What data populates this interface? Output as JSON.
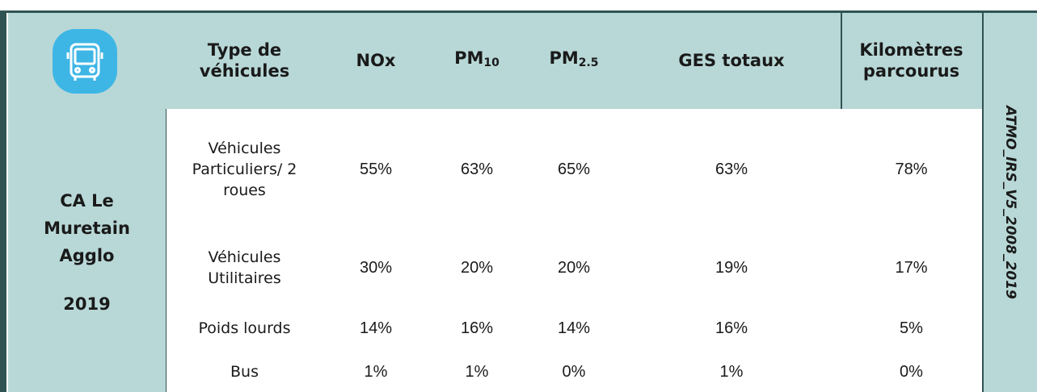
{
  "header": {
    "columns": [
      {
        "text": "Type de véhicules"
      },
      {
        "text": "NOx"
      },
      {
        "text": "PM",
        "sub": "10"
      },
      {
        "text": "PM",
        "sub": "2.5"
      },
      {
        "text": "GES totaux"
      },
      {
        "text": "Kilomètres parcourus"
      }
    ]
  },
  "territory": {
    "name": "CA Le Muretain Agglo",
    "year": "2019"
  },
  "side_label": "ATMO_IRS_V5_2008_2019",
  "table": {
    "rows": [
      [
        "Véhicules Particuliers/ 2 roues",
        "55%",
        "63%",
        "65%",
        "63%",
        "78%"
      ],
      [
        "Véhicules Utilitaires",
        "30%",
        "20%",
        "20%",
        "19%",
        "17%"
      ],
      [
        "Poids lourds",
        "14%",
        "16%",
        "14%",
        "16%",
        "5%"
      ],
      [
        "Bus",
        "1%",
        "1%",
        "0%",
        "1%",
        "0%"
      ]
    ]
  }
}
